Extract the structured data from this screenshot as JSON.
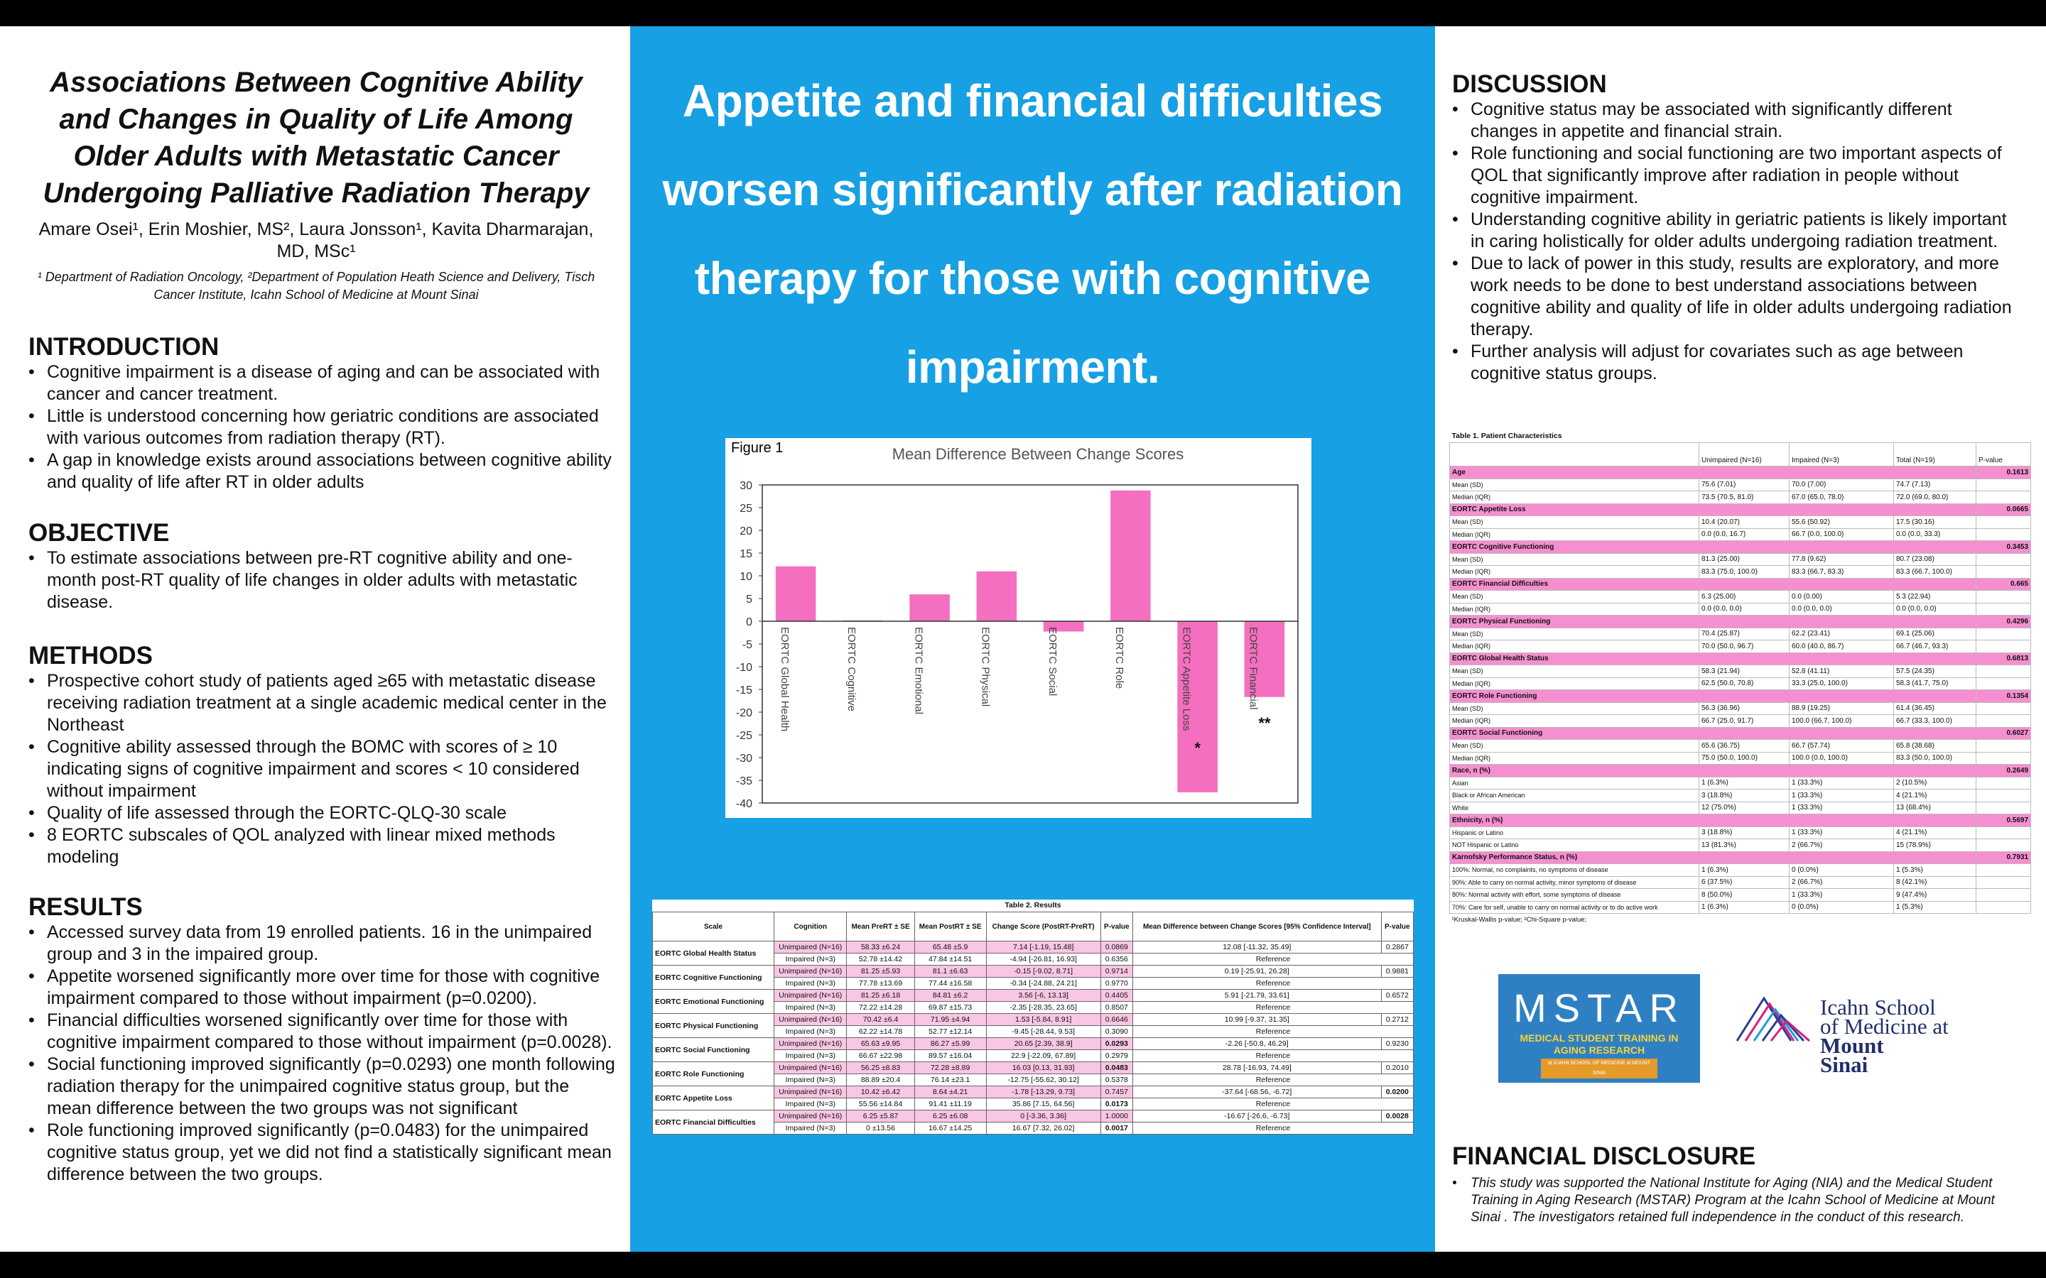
{
  "header": {
    "title": "Associations Between Cognitive Ability and Changes in Quality of Life Among Older Adults with Metastatic Cancer Undergoing Palliative Radiation Therapy",
    "authors": "Amare Osei¹, Erin Moshier, MS², Laura Jonsson¹, Kavita Dharmarajan, MD, MSc¹",
    "affiliations": "¹ Department of Radiation Oncology, ²Department of Population Heath Science and Delivery, Tisch Cancer Institute, Icahn School of Medicine at Mount Sinai"
  },
  "sections": {
    "introduction": {
      "heading": "INTRODUCTION",
      "bullets": [
        "Cognitive impairment is a disease of aging and can be associated with cancer and cancer treatment.",
        "Little is understood concerning how geriatric conditions are associated with various outcomes from radiation therapy (RT).",
        "A gap in knowledge exists around associations between cognitive ability and quality of life after RT in older adults"
      ]
    },
    "objective": {
      "heading": "OBJECTIVE",
      "bullets": [
        "To estimate associations between pre-RT cognitive ability and one-month post-RT quality of life changes in older adults with metastatic disease."
      ]
    },
    "methods": {
      "heading": "METHODS",
      "bullets": [
        "Prospective cohort study of patients aged ≥65 with metastatic disease receiving radiation treatment at a single academic medical center in the Northeast",
        "Cognitive ability assessed through the BOMC with scores of ≥ 10 indicating signs of cognitive impairment and scores < 10 considered without impairment",
        "Quality of life assessed through the EORTC-QLQ-30 scale",
        "8 EORTC subscales of QOL analyzed with linear mixed methods modeling"
      ]
    },
    "results": {
      "heading": "RESULTS",
      "bullets": [
        "Accessed survey data from 19 enrolled patients. 16 in the unimpaired group and 3 in the impaired group.",
        "Appetite worsened significantly more over time for those with cognitive impairment compared to those without impairment (p=0.0200).",
        "Financial difficulties worsened significantly over time for those with cognitive impairment compared to those without impairment (p=0.0028).",
        "Social functioning improved significantly (p=0.0293) one month following radiation therapy for the unimpaired cognitive status group, but the mean difference between the two groups was not significant",
        "Role functioning improved significantly (p=0.0483) for the unimpaired cognitive status group, yet we did not find a statistically significant mean difference between the two groups."
      ]
    },
    "discussion": {
      "heading": "DISCUSSION",
      "bullets": [
        "Cognitive status may be associated with significantly different changes in appetite and financial strain.",
        "Role functioning and social functioning are two important aspects of QOL that significantly improve after radiation in people without cognitive impairment.",
        "Understanding cognitive ability in geriatric patients is likely important in caring holistically for older adults undergoing radiation treatment.",
        "Due to lack of power in this study, results are exploratory, and more work needs to be done to best understand associations between cognitive ability and quality of life in older adults undergoing radiation therapy.",
        "Further analysis will adjust for covariates such as age between cognitive status groups."
      ]
    },
    "financial_disclosure": {
      "heading": "FINANCIAL DISCLOSURE",
      "bullets": [
        "This study was supported the National Institute for Aging (NIA) and the Medical Student Training in Aging Research (MSTAR) Program at the Icahn School of Medicine at Mount Sinai . The investigators retained full independence in the conduct of this research."
      ]
    }
  },
  "headline": "Appetite and financial difficulties worsen significantly after radiation therapy for those with cognitive impairment.",
  "chart_data": {
    "type": "bar",
    "label": "Figure 1",
    "title": "Mean Difference Between Change Scores",
    "categories": [
      "EORTC Global Health",
      "EORTC Cognitive",
      "EORTC Emotional",
      "EORTC Physical",
      "EORTC Social",
      "EORTC Role",
      "EORTC Appetite Loss",
      "EORTC Financial"
    ],
    "values": [
      12.08,
      0.19,
      5.91,
      10.99,
      -2.26,
      28.78,
      -37.64,
      -16.67
    ],
    "color": "#f46fbf",
    "ylim": [
      -40,
      30
    ],
    "yticks": [
      -40,
      -35,
      -30,
      -25,
      -20,
      -15,
      -10,
      -5,
      0,
      5,
      10,
      15,
      20,
      25,
      30
    ],
    "annotations": [
      {
        "text": "*",
        "category": "EORTC Appetite Loss",
        "y": -27.5
      },
      {
        "text": "**",
        "category": "EORTC Financial",
        "y": -22
      }
    ]
  },
  "table2": {
    "title": "Table 2. Results",
    "columns": [
      "Scale",
      "Cognition",
      "Mean PreRT ± SE",
      "Mean PostRT ± SE",
      "Change Score (PostRT-PreRT)",
      "P-value",
      "Mean Difference between Change Scores [95% Confidence Interval]",
      "P-value"
    ],
    "groups": [
      {
        "scale": "EORTC Global Health Status",
        "rows": [
          [
            "Unimpaired (N=16)",
            "58.33 ±6.24",
            "65.48 ±5.9",
            "7.14 [-1.19, 15.48]",
            "0.0869",
            "12.08 [-11.32, 35.49]",
            "0.2867"
          ],
          [
            "Impaired (N=3)",
            "52.78 ±14.42",
            "47.84 ±14.51",
            "-4.94 [-26.81, 16.93]",
            "0.6356",
            "Reference"
          ]
        ]
      },
      {
        "scale": "EORTC Cognitive Functioning",
        "rows": [
          [
            "Unimpaired (N=16)",
            "81.25 ±5.93",
            "81.1 ±6.63",
            "-0.15 [-9.02, 8.71]",
            "0.9714",
            "0.19 [-25.91, 26.28]",
            "0.9881"
          ],
          [
            "Impaired (N=3)",
            "77.78 ±13.69",
            "77.44 ±16.58",
            "-0.34 [-24.88, 24.21]",
            "0.9770",
            "Reference"
          ]
        ]
      },
      {
        "scale": "EORTC Emotional Functioning",
        "rows": [
          [
            "Unimpaired (N=16)",
            "81.25 ±6.18",
            "84.81 ±6.2",
            "3.56 [-6, 13.13]",
            "0.4405",
            "5.91 [-21.79, 33.61]",
            "0.6572"
          ],
          [
            "Impaired (N=3)",
            "72.22 ±14.28",
            "69.87 ±15.73",
            "-2.35 [-28.35, 23.65]",
            "0.8507",
            "Reference"
          ]
        ]
      },
      {
        "scale": "EORTC Physical Functioning",
        "rows": [
          [
            "Unimpaired (N=16)",
            "70.42 ±6.4",
            "71.95 ±4.94",
            "1.53 [-5.84, 8.91]",
            "0.6646",
            "10.99 [-9.37, 31.35]",
            "0.2712"
          ],
          [
            "Impaired (N=3)",
            "62.22 ±14.78",
            "52.77 ±12.14",
            "-9.45 [-28.44, 9.53]",
            "0.3090",
            "Reference"
          ]
        ]
      },
      {
        "scale": "EORTC Social Functioning",
        "rows": [
          [
            "Unimpaired (N=16)",
            "65.63 ±9.95",
            "86.27 ±5.99",
            "20.65 [2.39, 38.9]",
            "0.0293",
            "-2.26 [-50.8, 46.29]",
            "0.9230"
          ],
          [
            "Impaired (N=3)",
            "66.67 ±22.98",
            "89.57 ±16.04",
            "22.9 [-22.09, 67.89]",
            "0.2979",
            "Reference"
          ]
        ]
      },
      {
        "scale": "EORTC Role Functioning",
        "rows": [
          [
            "Unimpaired (N=16)",
            "56.25 ±8.83",
            "72.28 ±8.89",
            "16.03 [0.13, 31.93]",
            "0.0483",
            "28.78 [-16.93, 74.49]",
            "0.2010"
          ],
          [
            "Impaired (N=3)",
            "88.89 ±20.4",
            "76.14 ±23.1",
            "-12.75 [-55.62, 30.12]",
            "0.5378",
            "Reference"
          ]
        ]
      },
      {
        "scale": "EORTC Appetite Loss",
        "rows": [
          [
            "Unimpaired (N=16)",
            "10.42 ±6.42",
            "8.64 ±4.21",
            "-1.78 [-13.29, 9.73]",
            "0.7457",
            "-37.64 [-68.56, -6.72]",
            "0.0200"
          ],
          [
            "Impaired (N=3)",
            "55.56 ±14.84",
            "91.41 ±11.19",
            "35.86 [7.15, 64.56]",
            "0.0173",
            "Reference"
          ]
        ]
      },
      {
        "scale": "EORTC Financial Difficulties",
        "rows": [
          [
            "Unimpaired (N=16)",
            "6.25 ±5.87",
            "6.25 ±6.08",
            "0 [-3.36, 3.36]",
            "1.0000",
            "-16.67 [-26.6, -6.73]",
            "0.0028"
          ],
          [
            "Impaired (N=3)",
            "0 ±13.56",
            "16.67 ±14.25",
            "16.67 [7.32, 26.02]",
            "0.0017",
            "Reference"
          ]
        ]
      }
    ]
  },
  "table1": {
    "title": "Table 1. Patient Characteristics",
    "columns": [
      "Unimpaired (N=16)",
      "Impaired (N=3)",
      "Total (N=19)",
      "P-value"
    ],
    "groups": [
      {
        "label": "Age",
        "p": "0.1613",
        "rows": [
          [
            "Mean (SD)",
            "75.6 (7.01)",
            "70.0 (7.00)",
            "74.7 (7.13)"
          ],
          [
            "Median (IQR)",
            "73.5 (70.5, 81.0)",
            "67.0 (65.0, 78.0)",
            "72.0 (69.0, 80.0)"
          ]
        ]
      },
      {
        "label": "EORTC Appetite Loss",
        "p": "0.0665",
        "rows": [
          [
            "Mean (SD)",
            "10.4 (20.07)",
            "55.6 (50.92)",
            "17.5 (30.16)"
          ],
          [
            "Median (IQR)",
            "0.0 (0.0, 16.7)",
            "66.7 (0.0, 100.0)",
            "0.0 (0.0, 33.3)"
          ]
        ]
      },
      {
        "label": "EORTC Cognitive Functioning",
        "p": "0.3453",
        "rows": [
          [
            "Mean (SD)",
            "81.3 (25.00)",
            "77.8 (9.62)",
            "80.7 (23.08)"
          ],
          [
            "Median (IQR)",
            "83.3 (75.0, 100.0)",
            "83.3 (66.7, 83.3)",
            "83.3 (66.7, 100.0)"
          ]
        ]
      },
      {
        "label": "EORTC Financial Difficulties",
        "p": "0.665",
        "rows": [
          [
            "Mean (SD)",
            "6.3 (25.00)",
            "0.0 (0.00)",
            "5.3 (22.94)"
          ],
          [
            "Median (IQR)",
            "0.0 (0.0, 0.0)",
            "0.0 (0.0, 0.0)",
            "0.0 (0.0, 0.0)"
          ]
        ]
      },
      {
        "label": "EORTC Physical Functioning",
        "p": "0.4296",
        "rows": [
          [
            "Mean (SD)",
            "70.4 (25.87)",
            "62.2 (23.41)",
            "69.1 (25.06)"
          ],
          [
            "Median (IQR)",
            "70.0 (50.0, 96.7)",
            "60.0 (40.0, 86.7)",
            "66.7 (46.7, 93.3)"
          ]
        ]
      },
      {
        "label": "EORTC Global Health Status",
        "p": "0.6813",
        "rows": [
          [
            "Mean (SD)",
            "58.3 (21.94)",
            "52.8 (41.11)",
            "57.5 (24.35)"
          ],
          [
            "Median (IQR)",
            "62.5 (50.0, 70.8)",
            "33.3 (25.0, 100.0)",
            "58.3 (41.7, 75.0)"
          ]
        ]
      },
      {
        "label": "EORTC Role Functioning",
        "p": "0.1354",
        "rows": [
          [
            "Mean (SD)",
            "56.3 (36.96)",
            "88.9 (19.25)",
            "61.4 (36.45)"
          ],
          [
            "Median (IQR)",
            "66.7 (25.0, 91.7)",
            "100.0 (66.7, 100.0)",
            "66.7 (33.3, 100.0)"
          ]
        ]
      },
      {
        "label": "EORTC Social Functioning",
        "p": "0.6027",
        "rows": [
          [
            "Mean (SD)",
            "65.6 (36.75)",
            "66.7 (57.74)",
            "65.8 (38.68)"
          ],
          [
            "Median (IQR)",
            "75.0 (50.0, 100.0)",
            "100.0 (0.0, 100.0)",
            "83.3 (50.0, 100.0)"
          ]
        ]
      },
      {
        "label": "Race, n (%)",
        "p": "0.2649",
        "rows": [
          [
            "Asian",
            "1 (6.3%)",
            "1 (33.3%)",
            "2 (10.5%)"
          ],
          [
            "Black or African American",
            "3 (18.8%)",
            "1 (33.3%)",
            "4 (21.1%)"
          ],
          [
            "White",
            "12 (75.0%)",
            "1 (33.3%)",
            "13 (68.4%)"
          ]
        ]
      },
      {
        "label": "Ethnicity, n (%)",
        "p": "0.5697",
        "rows": [
          [
            "Hispanic or Latino",
            "3 (18.8%)",
            "1 (33.3%)",
            "4 (21.1%)"
          ],
          [
            "NOT Hispanic or Latino",
            "13 (81.3%)",
            "2 (66.7%)",
            "15 (78.9%)"
          ]
        ]
      },
      {
        "label": "Karnofsky Performance Status, n (%)",
        "p": "0.7931",
        "rows": [
          [
            "100%: Normal, no complaints, no symptoms of disease",
            "1 (6.3%)",
            "0 (0.0%)",
            "1 (5.3%)"
          ],
          [
            "90%: Able to carry on normal activity, minor symptoms of disease",
            "6 (37.5%)",
            "2 (66.7%)",
            "8 (42.1%)"
          ],
          [
            "80%: Normal activity with effort, some symptoms of disease",
            "8 (50.0%)",
            "1 (33.3%)",
            "9 (47.4%)"
          ],
          [
            "70%: Care for self, unable to carry on normal activity or to do active work",
            "1 (6.3%)",
            "0 (0.0%)",
            "1 (5.3%)"
          ]
        ]
      }
    ],
    "footnote": "¹Kruskal-Wallis p-value; ²Chi-Square p-value;"
  },
  "logos": {
    "mstar": {
      "name": "MSTAR",
      "line": "MEDICAL STUDENT TRAINING IN AGING RESEARCH",
      "sub": "at ICAHN SCHOOL OF MEDICINE at MOUNT SINAI"
    },
    "icahn": [
      "Icahn School",
      "of Medicine at",
      "Mount",
      "Sinai"
    ]
  }
}
